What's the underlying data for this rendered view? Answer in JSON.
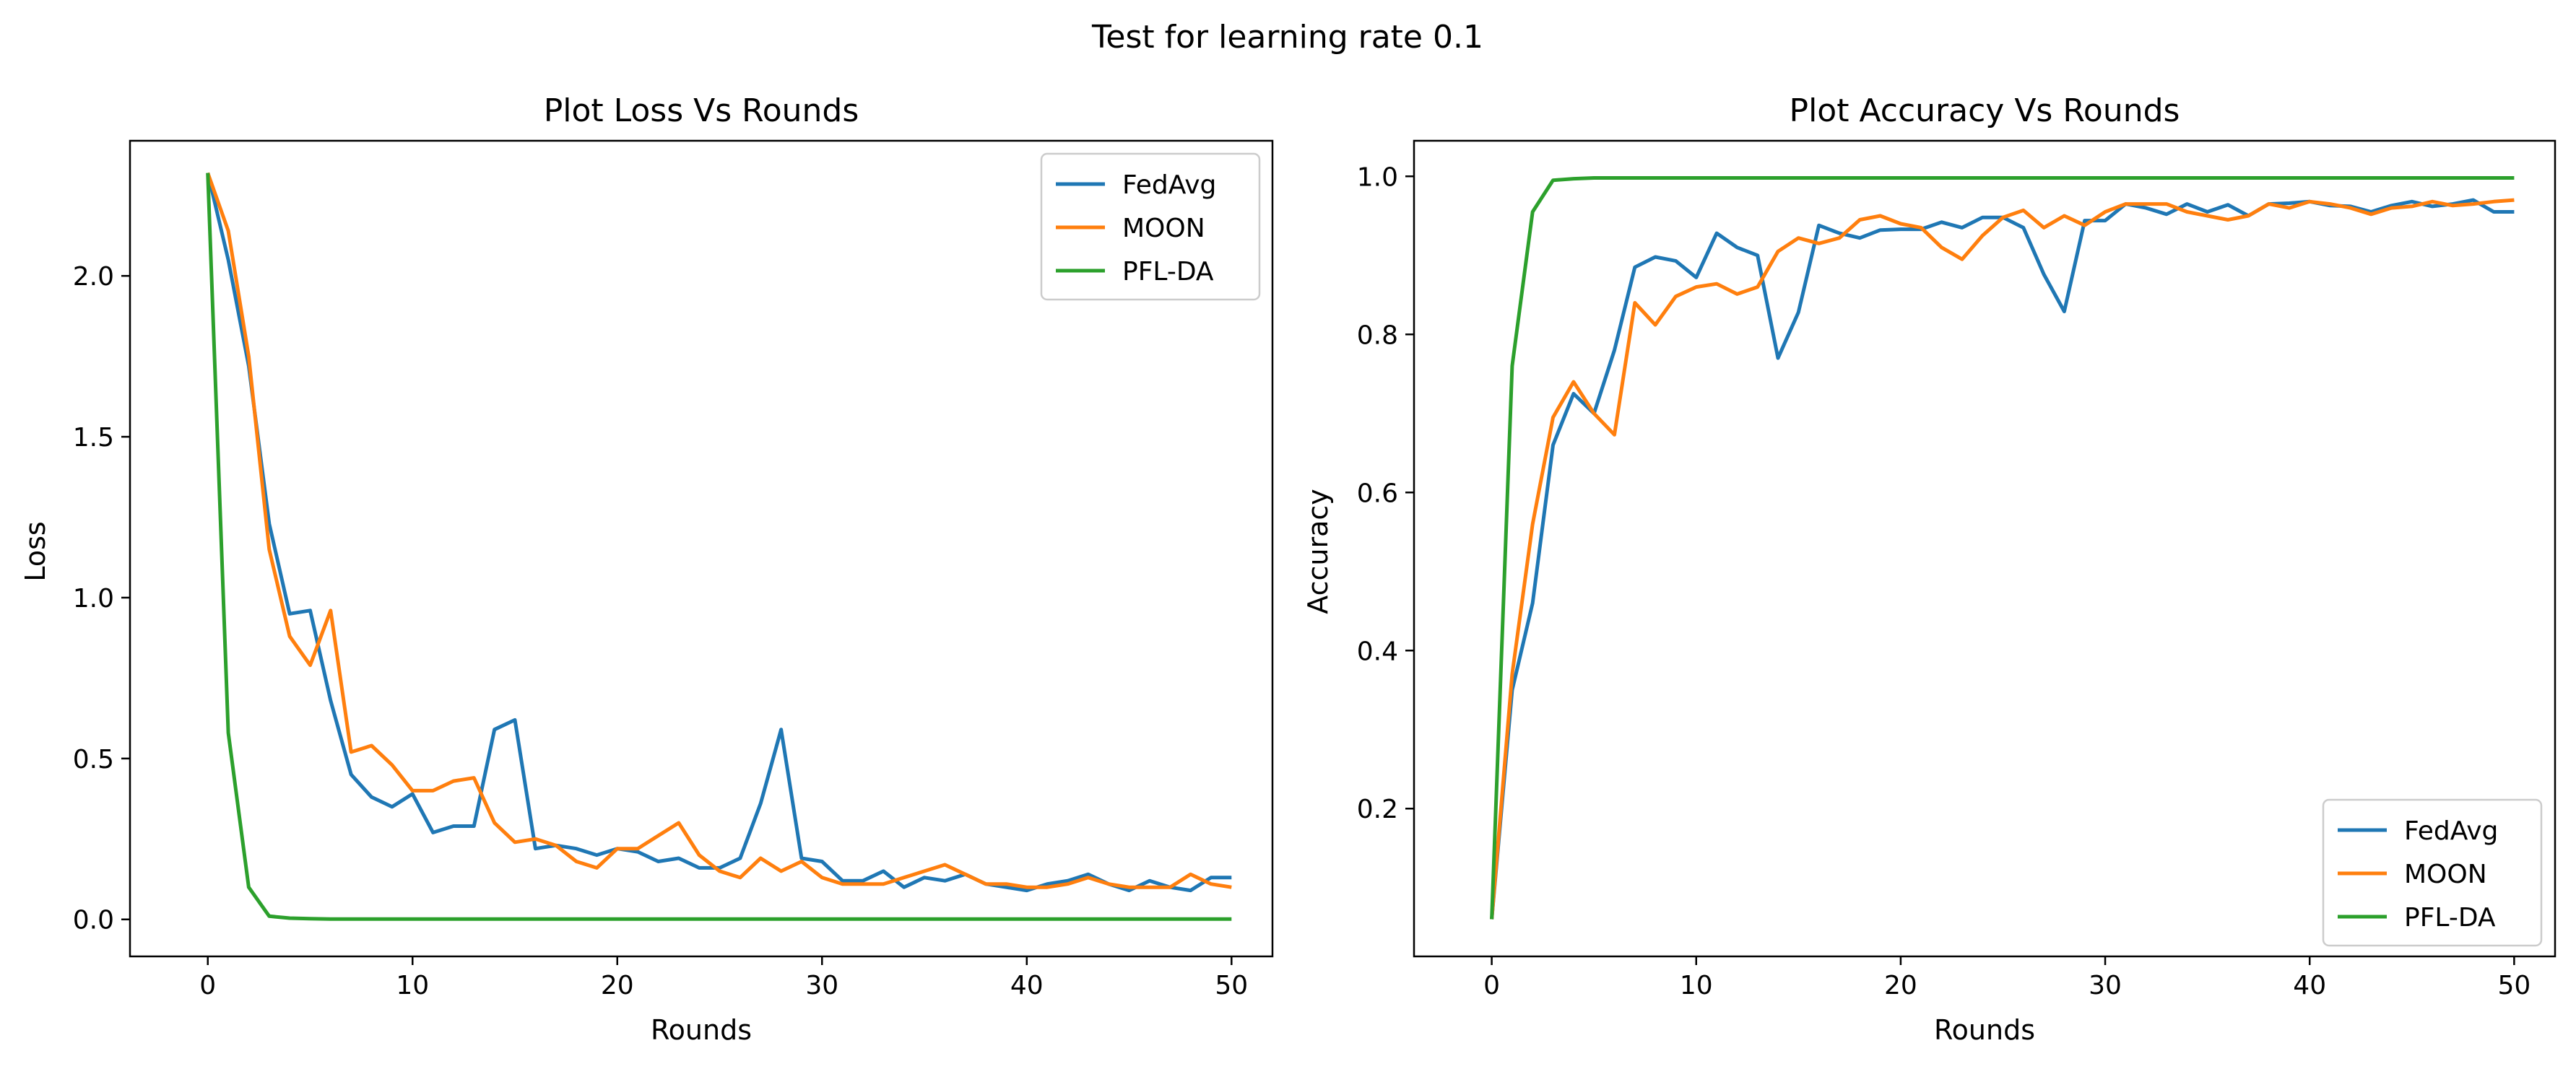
{
  "figure_title": "Test for learning rate 0.1",
  "chart_data": [
    {
      "type": "line",
      "title": "Plot Loss Vs Rounds",
      "xlabel": "Rounds",
      "ylabel": "Loss",
      "xlim": [
        -3.8,
        52
      ],
      "ylim": [
        -0.115,
        2.42
      ],
      "xticks": [
        0,
        10,
        20,
        30,
        40,
        50
      ],
      "yticks": [
        0.0,
        0.5,
        1.0,
        1.5,
        2.0
      ],
      "ytick_labels": [
        "0.0",
        "0.5",
        "1.0",
        "1.5",
        "2.0"
      ],
      "grid": false,
      "legend_position": "top-right",
      "x": [
        0,
        1,
        2,
        3,
        4,
        5,
        6,
        7,
        8,
        9,
        10,
        11,
        12,
        13,
        14,
        15,
        16,
        17,
        18,
        19,
        20,
        21,
        22,
        23,
        24,
        25,
        26,
        27,
        28,
        29,
        30,
        31,
        32,
        33,
        34,
        35,
        36,
        37,
        38,
        39,
        40,
        41,
        42,
        43,
        44,
        45,
        46,
        47,
        48,
        49,
        50
      ],
      "series": [
        {
          "name": "FedAvg",
          "color": "#1f77b4",
          "values": [
            2.32,
            2.05,
            1.72,
            1.23,
            0.95,
            0.96,
            0.68,
            0.45,
            0.38,
            0.35,
            0.39,
            0.27,
            0.29,
            0.29,
            0.59,
            0.62,
            0.22,
            0.23,
            0.22,
            0.2,
            0.22,
            0.21,
            0.18,
            0.19,
            0.16,
            0.16,
            0.19,
            0.36,
            0.59,
            0.19,
            0.18,
            0.12,
            0.12,
            0.15,
            0.1,
            0.13,
            0.12,
            0.14,
            0.11,
            0.1,
            0.09,
            0.11,
            0.12,
            0.14,
            0.11,
            0.09,
            0.12,
            0.1,
            0.09,
            0.13,
            0.13
          ]
        },
        {
          "name": "MOON",
          "color": "#ff7f0e",
          "values": [
            2.32,
            2.14,
            1.75,
            1.15,
            0.88,
            0.79,
            0.96,
            0.52,
            0.54,
            0.48,
            0.4,
            0.4,
            0.43,
            0.44,
            0.3,
            0.24,
            0.25,
            0.23,
            0.18,
            0.16,
            0.22,
            0.22,
            0.26,
            0.3,
            0.2,
            0.15,
            0.13,
            0.19,
            0.15,
            0.18,
            0.13,
            0.11,
            0.11,
            0.11,
            0.13,
            0.15,
            0.17,
            0.14,
            0.11,
            0.11,
            0.1,
            0.1,
            0.11,
            0.13,
            0.11,
            0.1,
            0.1,
            0.1,
            0.14,
            0.11,
            0.1
          ]
        },
        {
          "name": "PFL-DA",
          "color": "#2ca02c",
          "values": [
            2.32,
            0.58,
            0.1,
            0.01,
            0.004,
            0.002,
            0.001,
            0.001,
            0.001,
            0.001,
            0.001,
            0.001,
            0.001,
            0.001,
            0.001,
            0.001,
            0.001,
            0.001,
            0.001,
            0.001,
            0.001,
            0.001,
            0.001,
            0.001,
            0.001,
            0.001,
            0.001,
            0.001,
            0.001,
            0.001,
            0.001,
            0.001,
            0.001,
            0.001,
            0.001,
            0.001,
            0.001,
            0.001,
            0.001,
            0.001,
            0.001,
            0.001,
            0.001,
            0.001,
            0.001,
            0.001,
            0.001,
            0.001,
            0.001,
            0.001,
            0.001
          ]
        }
      ]
    },
    {
      "type": "line",
      "title": "Plot Accuracy Vs Rounds",
      "xlabel": "Rounds",
      "ylabel": "Accuracy",
      "xlim": [
        -3.8,
        52
      ],
      "ylim": [
        0.013,
        1.045
      ],
      "xticks": [
        0,
        10,
        20,
        30,
        40,
        50
      ],
      "yticks": [
        0.2,
        0.4,
        0.6,
        0.8,
        1.0
      ],
      "ytick_labels": [
        "0.2",
        "0.4",
        "0.6",
        "0.8",
        "1.0"
      ],
      "grid": false,
      "legend_position": "bottom-right",
      "x": [
        0,
        1,
        2,
        3,
        4,
        5,
        6,
        7,
        8,
        9,
        10,
        11,
        12,
        13,
        14,
        15,
        16,
        17,
        18,
        19,
        20,
        21,
        22,
        23,
        24,
        25,
        26,
        27,
        28,
        29,
        30,
        31,
        32,
        33,
        34,
        35,
        36,
        37,
        38,
        39,
        40,
        41,
        42,
        43,
        44,
        45,
        46,
        47,
        48,
        49,
        50
      ],
      "series": [
        {
          "name": "FedAvg",
          "color": "#1f77b4",
          "values": [
            0.06,
            0.35,
            0.46,
            0.66,
            0.725,
            0.7,
            0.78,
            0.885,
            0.898,
            0.893,
            0.872,
            0.928,
            0.91,
            0.9,
            0.77,
            0.828,
            0.938,
            0.928,
            0.922,
            0.932,
            0.933,
            0.933,
            0.942,
            0.935,
            0.948,
            0.948,
            0.935,
            0.876,
            0.829,
            0.944,
            0.944,
            0.965,
            0.96,
            0.952,
            0.965,
            0.955,
            0.964,
            0.95,
            0.965,
            0.966,
            0.968,
            0.963,
            0.962,
            0.955,
            0.963,
            0.968,
            0.962,
            0.965,
            0.97,
            0.955,
            0.955
          ]
        },
        {
          "name": "MOON",
          "color": "#ff7f0e",
          "values": [
            0.06,
            0.37,
            0.56,
            0.695,
            0.74,
            0.7,
            0.673,
            0.84,
            0.812,
            0.848,
            0.86,
            0.864,
            0.851,
            0.86,
            0.905,
            0.922,
            0.915,
            0.922,
            0.945,
            0.95,
            0.94,
            0.935,
            0.91,
            0.895,
            0.925,
            0.948,
            0.957,
            0.935,
            0.95,
            0.938,
            0.955,
            0.965,
            0.965,
            0.965,
            0.955,
            0.95,
            0.945,
            0.95,
            0.965,
            0.96,
            0.968,
            0.965,
            0.96,
            0.952,
            0.96,
            0.962,
            0.968,
            0.963,
            0.965,
            0.968,
            0.97
          ]
        },
        {
          "name": "PFL-DA",
          "color": "#2ca02c",
          "values": [
            0.06,
            0.76,
            0.955,
            0.995,
            0.997,
            0.998,
            0.998,
            0.998,
            0.998,
            0.998,
            0.998,
            0.998,
            0.998,
            0.998,
            0.998,
            0.998,
            0.998,
            0.998,
            0.998,
            0.998,
            0.998,
            0.998,
            0.998,
            0.998,
            0.998,
            0.998,
            0.998,
            0.998,
            0.998,
            0.998,
            0.998,
            0.998,
            0.998,
            0.998,
            0.998,
            0.998,
            0.998,
            0.998,
            0.998,
            0.998,
            0.998,
            0.998,
            0.998,
            0.998,
            0.998,
            0.998,
            0.998,
            0.998,
            0.998,
            0.998,
            0.998
          ]
        }
      ]
    }
  ]
}
